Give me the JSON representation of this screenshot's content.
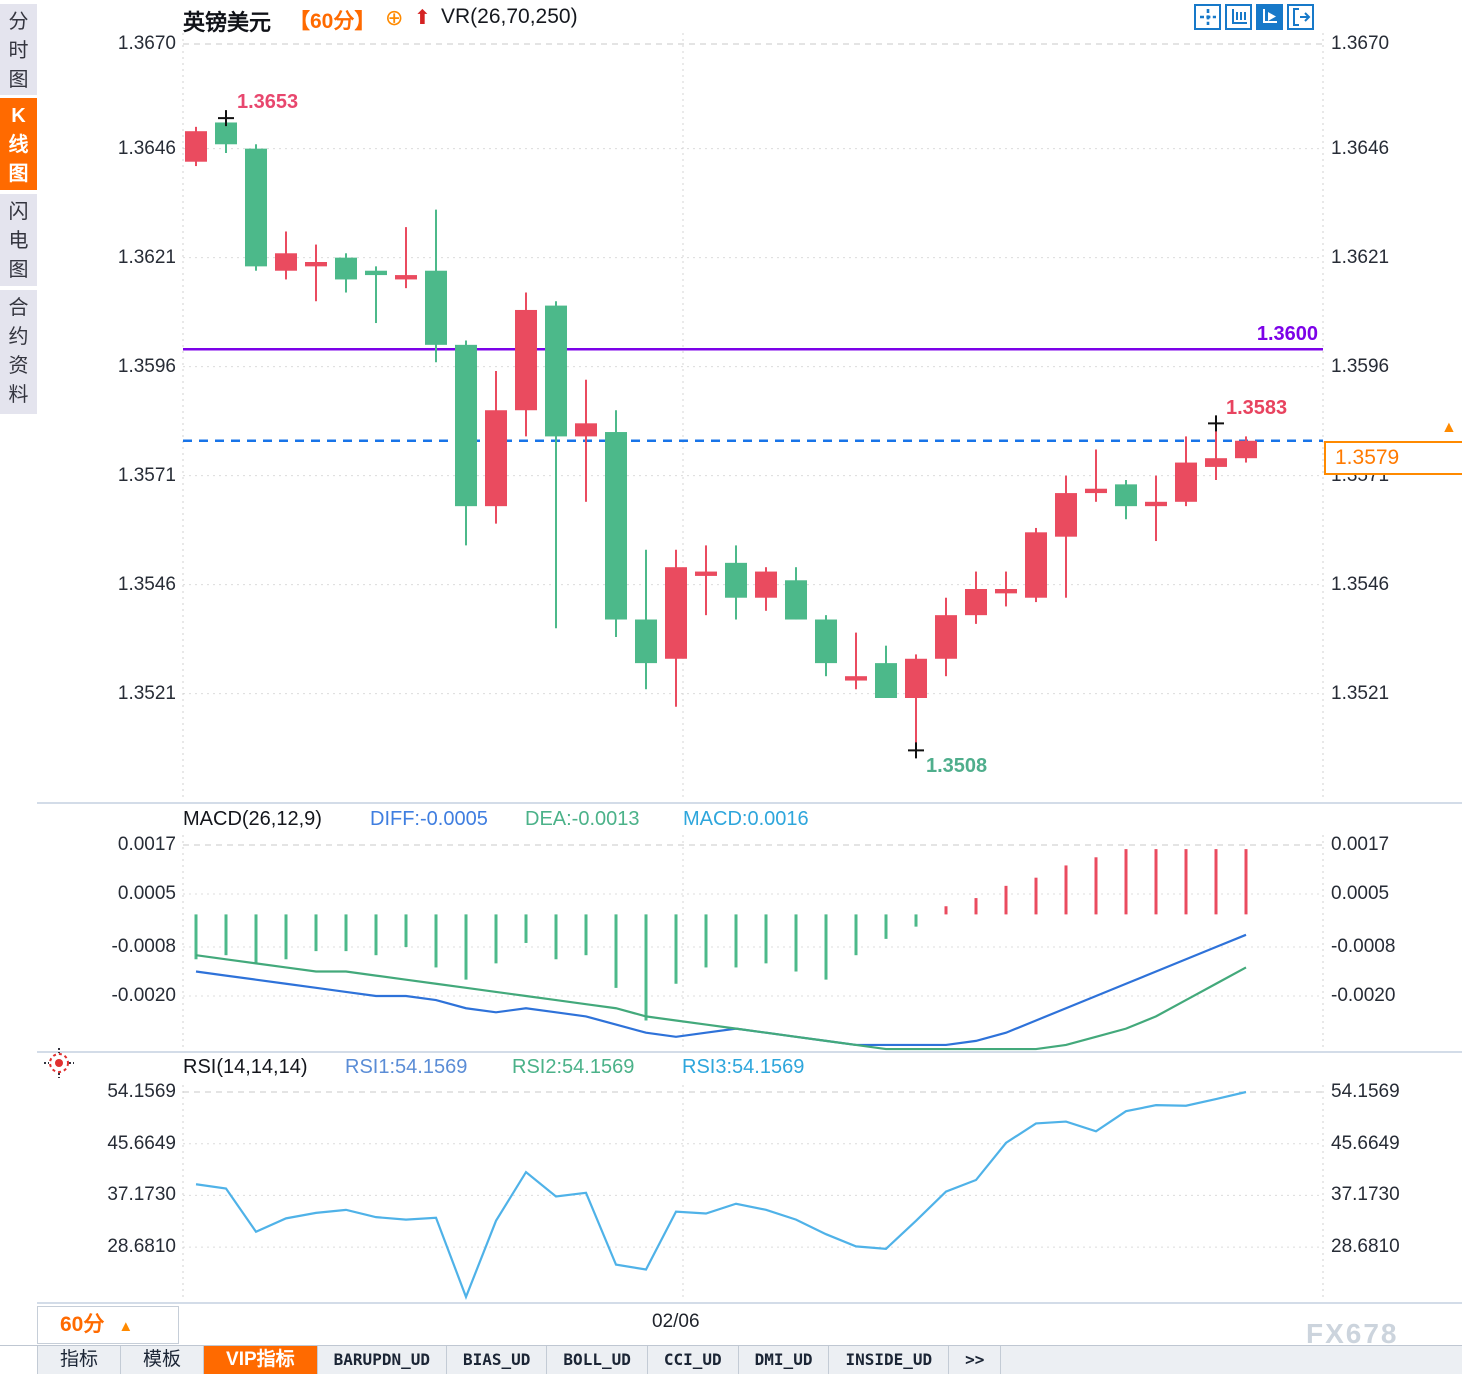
{
  "window": {
    "watermark": "FX678"
  },
  "sidebar": {
    "items": [
      {
        "label": "分时图",
        "active": false
      },
      {
        "label": "K线图",
        "active": true
      },
      {
        "label": "闪电图",
        "active": false
      },
      {
        "label": "合约资料",
        "active": false
      }
    ]
  },
  "header": {
    "symbol": "英镑美元",
    "period": "【60分】",
    "circle_plus_icon": "⊕",
    "up_arrow_icon": "⬆",
    "indicator": "VR(26,70,250)"
  },
  "toolbar": {
    "buttons": [
      {
        "icon": "crosshair-icon",
        "active": false
      },
      {
        "icon": "axis-scale-icon",
        "active": false
      },
      {
        "icon": "axis-play-icon",
        "active": true
      },
      {
        "icon": "exit-right-icon",
        "active": false
      }
    ]
  },
  "main_chart": {
    "axis_labels": [
      "1.3670",
      "1.3646",
      "1.3621",
      "1.3596",
      "1.3571",
      "1.3546",
      "1.3521"
    ],
    "annotations": {
      "period_high": "1.3653",
      "period_low": "1.3508",
      "recent_high": "1.3583",
      "resistance_label": "1.3600",
      "current_price": "1.3579",
      "current_price_marker": "▲"
    }
  },
  "macd_panel": {
    "title": "MACD(26,12,9)",
    "diff_label": "DIFF:-0.0005",
    "dea_label": "DEA:-0.0013",
    "macd_label": "MACD:0.0016",
    "axis_labels": [
      "0.0017",
      "0.0005",
      "-0.0008",
      "-0.0020"
    ]
  },
  "rsi_panel": {
    "title": "RSI(14,14,14)",
    "rsi1_label": "RSI1:54.1569",
    "rsi2_label": "RSI2:54.1569",
    "rsi3_label": "RSI3:54.1569",
    "axis_labels": [
      "54.1569",
      "45.6649",
      "37.1730",
      "28.6810"
    ]
  },
  "xaxis": {
    "date_label": "02/06",
    "period_badge": "60分",
    "badge_arrow": "▲"
  },
  "tabs": {
    "items": [
      {
        "label": "指标",
        "active": false,
        "mono": false
      },
      {
        "label": "模板",
        "active": false,
        "mono": false
      },
      {
        "label": "VIP指标",
        "active": true,
        "mono": false
      },
      {
        "label": "BARUPDN_UD",
        "active": false,
        "mono": true
      },
      {
        "label": "BIAS_UD",
        "active": false,
        "mono": true
      },
      {
        "label": "BOLL_UD",
        "active": false,
        "mono": true
      },
      {
        "label": "CCI_UD",
        "active": false,
        "mono": true
      },
      {
        "label": "DMI_UD",
        "active": false,
        "mono": true
      },
      {
        "label": "INSIDE_UD",
        "active": false,
        "mono": true
      },
      {
        "label": ">>",
        "active": false,
        "mono": true
      }
    ]
  },
  "colors": {
    "up_red": "#ea4b5f",
    "down_green": "#4cb98a",
    "accent_orange": "#ff6a00",
    "resistance_purple": "#7c02e8",
    "current_dashed_blue": "#1874e8",
    "diff_blue": "#2e72d9",
    "dea_green": "#43a97b",
    "rsi_blue": "#4fb2e8",
    "toolbar_blue": "#1779c9",
    "high_label_pink": "#e8476e",
    "low_label_green": "#4fae8c"
  },
  "chart_data": [
    {
      "type": "candlestick",
      "title": "英镑美元 60分",
      "color_convention": "red=up green=down",
      "y_ticks": [
        1.367,
        1.3646,
        1.3621,
        1.3596,
        1.3571,
        1.3546,
        1.3521
      ],
      "reference_lines": [
        {
          "value": 1.36,
          "style": "solid",
          "color": "purple"
        },
        {
          "value": 1.3579,
          "style": "dashed",
          "color": "blue"
        }
      ],
      "markers": [
        {
          "type": "period-high",
          "value": 1.3653,
          "index": 1
        },
        {
          "type": "period-low",
          "value": 1.3508,
          "index": 24
        },
        {
          "type": "recent-high",
          "value": 1.3583,
          "index": 34
        }
      ],
      "ohlc": [
        [
          1.3643,
          1.3651,
          1.3642,
          1.365
        ],
        [
          1.3652,
          1.3653,
          1.3645,
          1.3647
        ],
        [
          1.3646,
          1.3647,
          1.3618,
          1.3619
        ],
        [
          1.3618,
          1.3627,
          1.3616,
          1.3622
        ],
        [
          1.3619,
          1.3624,
          1.3611,
          1.362
        ],
        [
          1.3621,
          1.3622,
          1.3613,
          1.3616
        ],
        [
          1.3618,
          1.3619,
          1.3606,
          1.3617
        ],
        [
          1.3616,
          1.3628,
          1.3614,
          1.3617
        ],
        [
          1.3618,
          1.3632,
          1.3597,
          1.3601
        ],
        [
          1.3601,
          1.3602,
          1.3555,
          1.3564
        ],
        [
          1.3564,
          1.3595,
          1.356,
          1.3586
        ],
        [
          1.3586,
          1.3613,
          1.358,
          1.3609
        ],
        [
          1.361,
          1.3611,
          1.3536,
          1.358
        ],
        [
          1.358,
          1.3593,
          1.3565,
          1.3583
        ],
        [
          1.3581,
          1.3586,
          1.3534,
          1.3538
        ],
        [
          1.3538,
          1.3554,
          1.3522,
          1.3528
        ],
        [
          1.3529,
          1.3554,
          1.3518,
          1.355
        ],
        [
          1.3548,
          1.3555,
          1.3539,
          1.3549
        ],
        [
          1.3551,
          1.3555,
          1.3538,
          1.3543
        ],
        [
          1.3543,
          1.355,
          1.354,
          1.3549
        ],
        [
          1.3547,
          1.355,
          1.3538,
          1.3538
        ],
        [
          1.3538,
          1.3539,
          1.3525,
          1.3528
        ],
        [
          1.3524,
          1.3535,
          1.3522,
          1.3525
        ],
        [
          1.3528,
          1.3532,
          1.352,
          1.352
        ],
        [
          1.352,
          1.353,
          1.3508,
          1.3529
        ],
        [
          1.3529,
          1.3543,
          1.3525,
          1.3539
        ],
        [
          1.3539,
          1.3549,
          1.3537,
          1.3545
        ],
        [
          1.3544,
          1.3549,
          1.3541,
          1.3545
        ],
        [
          1.3543,
          1.3559,
          1.3542,
          1.3558
        ],
        [
          1.3557,
          1.3571,
          1.3543,
          1.3567
        ],
        [
          1.3567,
          1.3577,
          1.3565,
          1.3568
        ],
        [
          1.3569,
          1.357,
          1.3561,
          1.3564
        ],
        [
          1.3564,
          1.3571,
          1.3556,
          1.3565
        ],
        [
          1.3565,
          1.358,
          1.3564,
          1.3574
        ],
        [
          1.3573,
          1.3583,
          1.357,
          1.3575
        ],
        [
          1.3575,
          1.358,
          1.3574,
          1.3579
        ]
      ]
    },
    {
      "type": "bar+line",
      "name": "MACD",
      "params": "26,12,9",
      "diff": -0.0005,
      "dea": -0.0013,
      "macd": 0.0016,
      "y_ticks": [
        0.0017,
        0.0005,
        -0.0008,
        -0.002
      ],
      "histogram": [
        -0.0011,
        -0.001,
        -0.0012,
        -0.0011,
        -0.0009,
        -0.0009,
        -0.001,
        -0.0008,
        -0.0013,
        -0.0016,
        -0.0012,
        -0.0007,
        -0.0011,
        -0.001,
        -0.0018,
        -0.0026,
        -0.0017,
        -0.0013,
        -0.0013,
        -0.0012,
        -0.0014,
        -0.0016,
        -0.001,
        -0.0006,
        -0.0003,
        0.0002,
        0.0004,
        0.0007,
        0.0009,
        0.0012,
        0.0014,
        0.0016,
        0.0016,
        0.0016,
        0.0016,
        0.0016
      ],
      "diff_series": [
        -0.0014,
        -0.0015,
        -0.0016,
        -0.0017,
        -0.0018,
        -0.0019,
        -0.002,
        -0.002,
        -0.0021,
        -0.0023,
        -0.0024,
        -0.0023,
        -0.0024,
        -0.0025,
        -0.0027,
        -0.0029,
        -0.003,
        -0.0029,
        -0.0028,
        -0.0029,
        -0.003,
        -0.0031,
        -0.0032,
        -0.0032,
        -0.0032,
        -0.0032,
        -0.0031,
        -0.0029,
        -0.0026,
        -0.0023,
        -0.002,
        -0.0017,
        -0.0014,
        -0.0011,
        -0.0008,
        -0.0005
      ],
      "dea_series": [
        -0.001,
        -0.0011,
        -0.0012,
        -0.0013,
        -0.0014,
        -0.0014,
        -0.0015,
        -0.0016,
        -0.0017,
        -0.0018,
        -0.0019,
        -0.002,
        -0.0021,
        -0.0022,
        -0.0023,
        -0.0025,
        -0.0026,
        -0.0027,
        -0.0028,
        -0.0029,
        -0.003,
        -0.0031,
        -0.0032,
        -0.0033,
        -0.0033,
        -0.0033,
        -0.0033,
        -0.0033,
        -0.0033,
        -0.0032,
        -0.003,
        -0.0028,
        -0.0025,
        -0.0021,
        -0.0017,
        -0.0013
      ]
    },
    {
      "type": "line",
      "name": "RSI",
      "params": "14,14,14",
      "rsi1": 54.1569,
      "rsi2": 54.1569,
      "rsi3": 54.1569,
      "y_ticks": [
        54.1569,
        45.6649,
        37.173,
        28.681
      ],
      "series": [
        39.0,
        38.3,
        31.2,
        33.4,
        34.3,
        34.8,
        33.6,
        33.2,
        33.5,
        20.5,
        33.0,
        41.0,
        37.0,
        37.6,
        25.8,
        25.0,
        34.5,
        34.2,
        35.8,
        34.8,
        33.2,
        30.8,
        28.8,
        28.4,
        33.0,
        37.8,
        39.7,
        45.8,
        49.0,
        49.3,
        47.7,
        51.0,
        52.0,
        51.9,
        53.0,
        54.1569
      ]
    }
  ]
}
